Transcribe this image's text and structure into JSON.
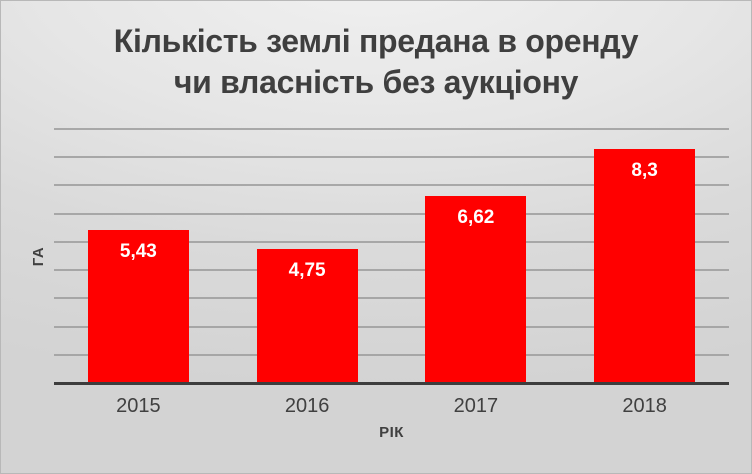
{
  "title": {
    "line1": "Кількість землі предана в оренду",
    "line2": "чи власність без аукціону"
  },
  "chart_data": {
    "type": "bar",
    "title": "Кількість землі предана в оренду чи власність без аукціону",
    "categories": [
      "2015",
      "2016",
      "2017",
      "2018"
    ],
    "values": [
      5.43,
      4.75,
      6.62,
      8.3
    ],
    "value_labels": [
      "5,43",
      "4,75",
      "6,62",
      "8,3"
    ],
    "xlabel": "РІК",
    "ylabel": "ГА",
    "ylim": [
      0,
      9
    ],
    "gridline_interval": 1,
    "gridline_count": 9,
    "grid": "horizontal",
    "legend": "none",
    "bar_color": "#ff0000",
    "value_label_color": "#ffffff"
  },
  "colors": {
    "title_text": "#3f3f3f",
    "axis_text": "#404040",
    "gridline": "#9e9e9e",
    "axis_line": "#3d3d3d",
    "background_light": "#f1f1f1",
    "background_dark": "#d3d3d3",
    "bar": "#ff0000"
  }
}
